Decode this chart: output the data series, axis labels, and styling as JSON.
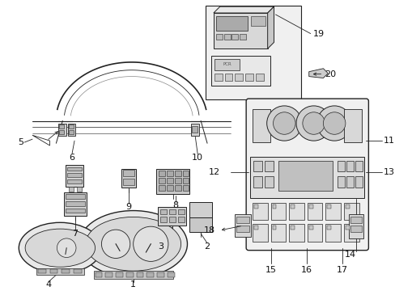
{
  "bg": "#ffffff",
  "fig_w": 4.89,
  "fig_h": 3.6,
  "dpi": 100,
  "label_fs": 8,
  "line_color": "#222222",
  "part_color": "#444444"
}
